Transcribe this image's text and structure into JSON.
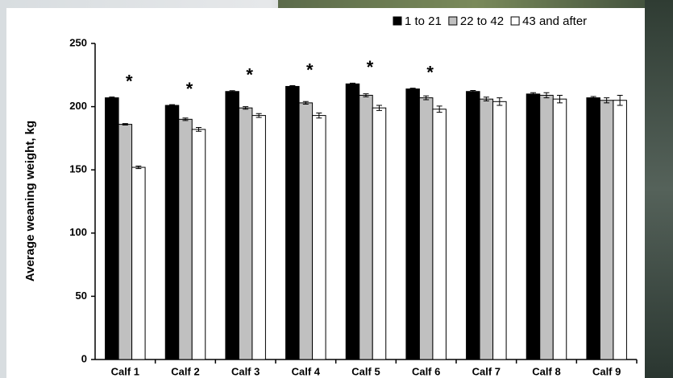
{
  "chart_data": {
    "type": "bar",
    "y_label": "Average weaning weight, kg",
    "categories": [
      "Calf 1",
      "Calf 2",
      "Calf 3",
      "Calf 4",
      "Calf 5",
      "Calf 6",
      "Calf 7",
      "Calf 8",
      "Calf 9"
    ],
    "series": [
      {
        "name": "1 to 21",
        "color": "#000000",
        "values": [
          207,
          201,
          212,
          216,
          218,
          214,
          212,
          210,
          207
        ],
        "errors": [
          0.6,
          0.6,
          0.6,
          0.6,
          0.6,
          0.6,
          0.8,
          1,
          1
        ]
      },
      {
        "name": "22 to 42",
        "color": "#c0c0c0",
        "values": [
          186,
          190,
          199,
          203,
          209,
          207,
          206,
          209,
          205
        ],
        "errors": [
          0.6,
          1,
          1,
          1,
          1.2,
          1.5,
          1.5,
          2,
          2
        ]
      },
      {
        "name": "43 and after",
        "color": "#ffffff",
        "values": [
          152,
          182,
          193,
          193,
          199,
          198,
          204,
          206,
          205
        ],
        "errors": [
          1,
          1.5,
          1.5,
          2,
          2,
          2.5,
          3,
          3,
          4
        ]
      }
    ],
    "significance": [
      "*",
      "*",
      "*",
      "*",
      "*",
      "*",
      null,
      null,
      null
    ],
    "ylim": [
      0,
      250
    ],
    "yticks": [
      0,
      50,
      100,
      150,
      200,
      250
    ],
    "legend": "top-right"
  }
}
